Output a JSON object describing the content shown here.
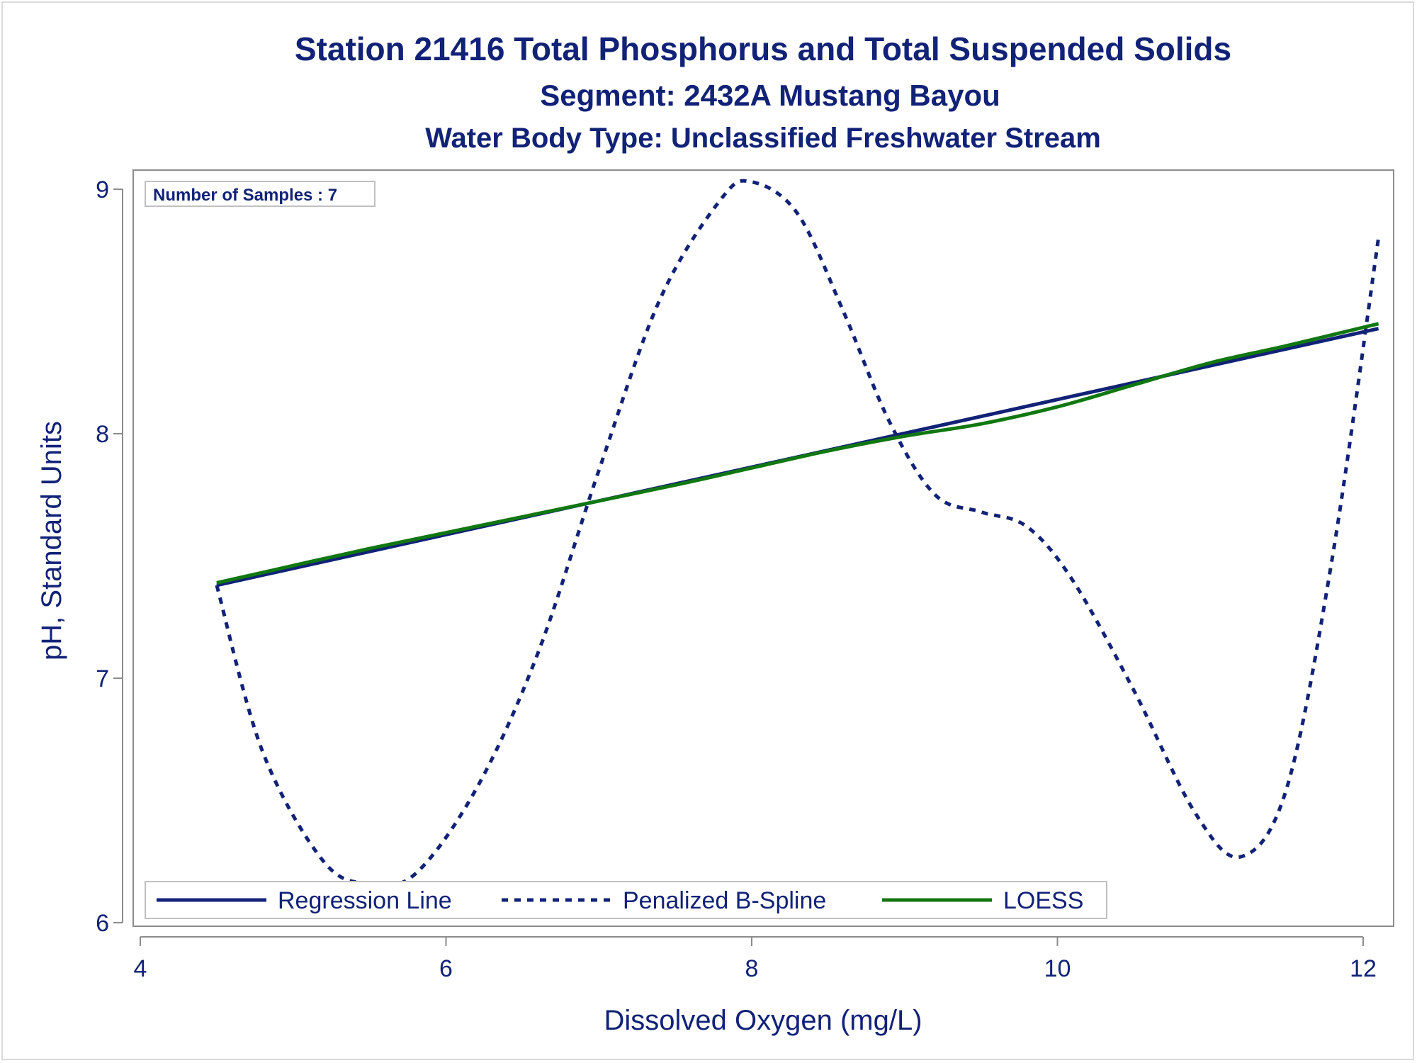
{
  "chart_data": {
    "type": "line",
    "title": "Station 21416  Total Phosphorus and Total Suspended Solids",
    "subtitle": "Segment: 2432A  Mustang Bayou",
    "subtitle2": "Water Body Type: Unclassified Freshwater Stream",
    "xlabel": "Dissolved Oxygen (mg/L)",
    "ylabel": "pH, Standard Units",
    "xlim": [
      4,
      12.1
    ],
    "ylim": [
      5.95,
      9.1
    ],
    "xticks": [
      4,
      6,
      8,
      10,
      12
    ],
    "yticks": [
      6,
      7,
      8,
      9
    ],
    "inset": "Number of Samples : 7",
    "legend_position": "bottom-left inside",
    "series": [
      {
        "name": "Regression Line",
        "style": "solid",
        "color": "#112277",
        "x": [
          4.5,
          12.1
        ],
        "y": [
          7.38,
          8.43
        ]
      },
      {
        "name": "Penalized B-Spline",
        "style": "dashed",
        "color": "#112277",
        "x": [
          4.5,
          4.8,
          5.2,
          5.5,
          5.8,
          6.2,
          6.6,
          7.0,
          7.4,
          7.8,
          8.0,
          8.3,
          8.6,
          8.9,
          9.2,
          9.5,
          9.8,
          10.1,
          10.5,
          10.9,
          11.2,
          11.5,
          11.8,
          12.1
        ],
        "y": [
          7.38,
          6.7,
          6.25,
          6.16,
          6.2,
          6.55,
          7.1,
          7.85,
          8.55,
          8.96,
          9.03,
          8.9,
          8.5,
          8.05,
          7.75,
          7.68,
          7.62,
          7.4,
          6.95,
          6.45,
          6.27,
          6.55,
          7.5,
          8.8
        ]
      },
      {
        "name": "LOESS",
        "style": "solid",
        "color": "#117711",
        "x": [
          4.5,
          5.5,
          6.5,
          7.5,
          8.0,
          8.5,
          9.0,
          9.5,
          10.0,
          10.5,
          11.0,
          11.5,
          12.1
        ],
        "y": [
          7.39,
          7.53,
          7.66,
          7.79,
          7.86,
          7.93,
          7.99,
          8.04,
          8.11,
          8.2,
          8.29,
          8.36,
          8.45
        ]
      }
    ]
  }
}
